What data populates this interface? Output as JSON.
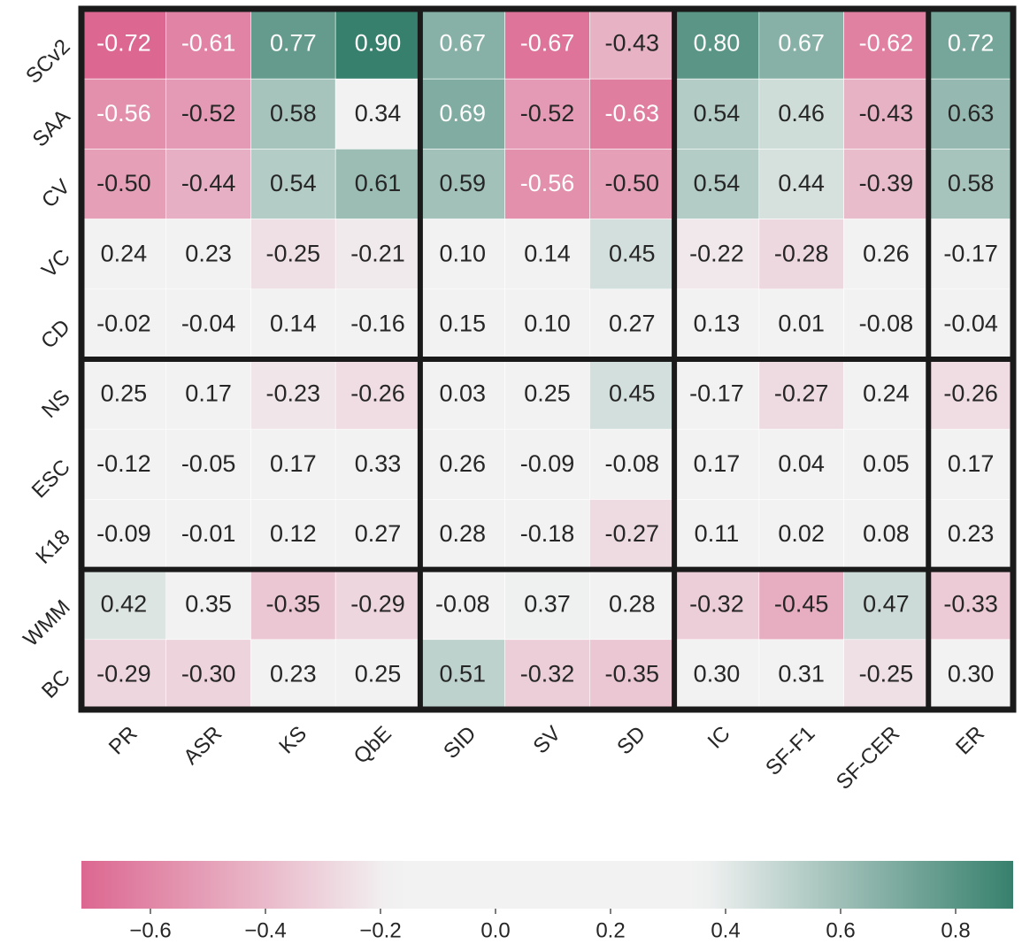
{
  "chart_data": {
    "type": "heatmap",
    "columns": [
      "PR",
      "ASR",
      "KS",
      "QbE",
      "SID",
      "SV",
      "SD",
      "IC",
      "SF-F1",
      "SF-CER",
      "ER"
    ],
    "rows": [
      "SCv2",
      "SAA",
      "CV",
      "VC",
      "CD",
      "NS",
      "ESC",
      "K18",
      "WMM",
      "BC"
    ],
    "values": [
      [
        -0.72,
        -0.61,
        0.77,
        0.9,
        0.67,
        -0.67,
        -0.43,
        0.8,
        0.67,
        -0.62,
        0.72
      ],
      [
        -0.56,
        -0.52,
        0.58,
        0.34,
        0.69,
        -0.52,
        -0.63,
        0.54,
        0.46,
        -0.43,
        0.63
      ],
      [
        -0.5,
        -0.44,
        0.54,
        0.61,
        0.59,
        -0.56,
        -0.5,
        0.54,
        0.44,
        -0.39,
        0.58
      ],
      [
        0.24,
        0.23,
        -0.25,
        -0.21,
        0.1,
        0.14,
        0.45,
        -0.22,
        -0.28,
        0.26,
        -0.17
      ],
      [
        -0.02,
        -0.04,
        0.14,
        -0.16,
        0.15,
        0.1,
        0.27,
        0.13,
        0.01,
        -0.08,
        -0.04
      ],
      [
        0.25,
        0.17,
        -0.23,
        -0.26,
        0.03,
        0.25,
        0.45,
        -0.17,
        -0.27,
        0.24,
        -0.26
      ],
      [
        -0.12,
        -0.05,
        0.17,
        0.33,
        0.26,
        -0.09,
        -0.08,
        0.17,
        0.04,
        0.05,
        0.17
      ],
      [
        -0.09,
        -0.01,
        0.12,
        0.27,
        0.28,
        -0.18,
        -0.27,
        0.11,
        0.02,
        0.08,
        0.23
      ],
      [
        0.42,
        0.35,
        -0.35,
        -0.29,
        -0.08,
        0.37,
        0.28,
        -0.32,
        -0.45,
        0.47,
        -0.33
      ],
      [
        -0.29,
        -0.3,
        0.23,
        0.25,
        0.51,
        -0.32,
        -0.35,
        0.3,
        0.31,
        -0.25,
        0.3
      ]
    ],
    "value_labels": [
      [
        "-0.72",
        "-0.61",
        "0.77",
        "0.90",
        "0.67",
        "-0.67",
        "-0.43",
        "0.80",
        "0.67",
        "-0.62",
        "0.72"
      ],
      [
        "-0.56",
        "-0.52",
        "0.58",
        "0.34",
        "0.69",
        "-0.52",
        "-0.63",
        "0.54",
        "0.46",
        "-0.43",
        "0.63"
      ],
      [
        "-0.50",
        "-0.44",
        "0.54",
        "0.61",
        "0.59",
        "-0.56",
        "-0.50",
        "0.54",
        "0.44",
        "-0.39",
        "0.58"
      ],
      [
        "0.24",
        "0.23",
        "-0.25",
        "-0.21",
        "0.10",
        "0.14",
        "0.45",
        "-0.22",
        "-0.28",
        "0.26",
        "-0.17"
      ],
      [
        "-0.02",
        "-0.04",
        "0.14",
        "-0.16",
        "0.15",
        "0.10",
        "0.27",
        "0.13",
        "0.01",
        "-0.08",
        "-0.04"
      ],
      [
        "0.25",
        "0.17",
        "-0.23",
        "-0.26",
        "0.03",
        "0.25",
        "0.45",
        "-0.17",
        "-0.27",
        "0.24",
        "-0.26"
      ],
      [
        "-0.12",
        "-0.05",
        "0.17",
        "0.33",
        "0.26",
        "-0.09",
        "-0.08",
        "0.17",
        "0.04",
        "0.05",
        "0.17"
      ],
      [
        "-0.09",
        "-0.01",
        "0.12",
        "0.27",
        "0.28",
        "-0.18",
        "-0.27",
        "0.11",
        "0.02",
        "0.08",
        "0.23"
      ],
      [
        "0.42",
        "0.35",
        "-0.35",
        "-0.29",
        "-0.08",
        "0.37",
        "0.28",
        "-0.32",
        "-0.45",
        "0.47",
        "-0.33"
      ],
      [
        "-0.29",
        "-0.30",
        "0.23",
        "0.25",
        "0.51",
        "-0.32",
        "-0.35",
        "0.30",
        "0.31",
        "-0.25",
        "0.30"
      ]
    ],
    "clim": [
      -0.72,
      0.9
    ],
    "cticks": [
      {
        "value": -0.6,
        "label": "−0.6"
      },
      {
        "value": -0.4,
        "label": "−0.4"
      },
      {
        "value": -0.2,
        "label": "−0.2"
      },
      {
        "value": 0,
        "label": "0.0"
      },
      0.2,
      0.4,
      0.6,
      0.8
    ],
    "colormap": [
      "#dc6790",
      "#f2f2f2",
      "#f2f2f2",
      "#37806d"
    ]
  }
}
